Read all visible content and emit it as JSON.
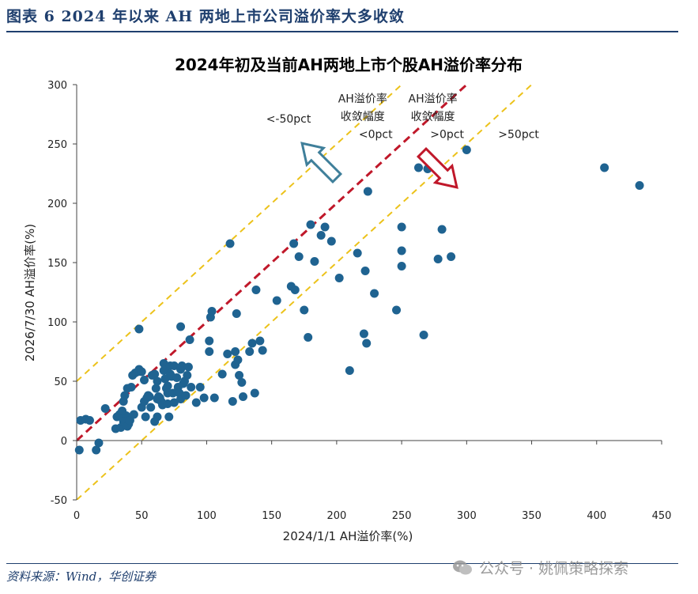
{
  "header": {
    "figure_title": "图表 6   2024 年以来 AH 两地上市公司溢价率大多收敛"
  },
  "footer": {
    "source": "资料来源：Wind，华创证券",
    "watermark": "公众号 · 姚佩策略探索"
  },
  "colors": {
    "header": "#1f3f6e",
    "points": "#1f6391",
    "center_line": "#c0182a",
    "band_lines": "#ecc21a",
    "arrow_up": "#3f7f9a",
    "arrow_down": "#c0182a"
  },
  "chart_data": {
    "type": "scatter",
    "title": "2024年初及当前AH两地上市个股AH溢价率分布",
    "xlabel": "2024/1/1 AH溢价率(%)",
    "ylabel": "2026/7/30 AH溢价率(%)",
    "xlim": [
      0,
      450
    ],
    "ylim": [
      -50,
      300
    ],
    "xticks": [
      0,
      50,
      100,
      150,
      200,
      250,
      300,
      350,
      400,
      450
    ],
    "yticks": [
      -50,
      0,
      50,
      100,
      150,
      200,
      250,
      300
    ],
    "grid": false,
    "reference_lines": [
      {
        "offset": 50,
        "style": "dashed",
        "color": "#ecc21a"
      },
      {
        "offset": 0,
        "style": "dashed",
        "color": "#c0182a"
      },
      {
        "offset": -50,
        "style": "dashed",
        "color": "#ecc21a"
      }
    ],
    "annotations": [
      {
        "text": "<-50pct",
        "x": 163,
        "y": 268
      },
      {
        "text": "AH溢价率",
        "x": 220,
        "y": 285
      },
      {
        "text": "收敛幅度",
        "x": 220,
        "y": 270
      },
      {
        "text": "<0pct",
        "x": 230,
        "y": 255
      },
      {
        "text": "AH溢价率",
        "x": 274,
        "y": 285
      },
      {
        "text": "收敛幅度",
        "x": 274,
        "y": 270
      },
      {
        "text": ">0pct",
        "x": 285,
        "y": 255
      },
      {
        "text": ">50pct",
        "x": 340,
        "y": 255
      }
    ],
    "points": [
      [
        2,
        -8
      ],
      [
        15,
        -8
      ],
      [
        17,
        -2
      ],
      [
        3,
        17
      ],
      [
        7,
        18
      ],
      [
        10,
        17
      ],
      [
        22,
        27
      ],
      [
        30,
        10
      ],
      [
        34,
        11
      ],
      [
        31,
        20
      ],
      [
        33,
        22
      ],
      [
        38,
        21
      ],
      [
        35,
        25
      ],
      [
        36,
        16
      ],
      [
        40,
        14
      ],
      [
        39,
        12
      ],
      [
        41,
        17
      ],
      [
        44,
        22
      ],
      [
        36,
        33
      ],
      [
        37,
        38
      ],
      [
        39,
        44
      ],
      [
        42,
        45
      ],
      [
        43,
        55
      ],
      [
        45,
        57
      ],
      [
        47,
        58
      ],
      [
        48,
        60
      ],
      [
        50,
        58
      ],
      [
        50,
        28
      ],
      [
        52,
        33
      ],
      [
        52,
        51
      ],
      [
        53,
        20
      ],
      [
        54,
        36
      ],
      [
        55,
        38
      ],
      [
        56,
        37
      ],
      [
        57,
        28
      ],
      [
        58,
        55
      ],
      [
        60,
        56
      ],
      [
        61,
        44
      ],
      [
        60,
        16
      ],
      [
        62,
        20
      ],
      [
        62,
        35
      ],
      [
        62,
        50
      ],
      [
        63,
        37
      ],
      [
        64,
        36
      ],
      [
        65,
        33
      ],
      [
        66,
        30
      ],
      [
        67,
        59
      ],
      [
        67,
        65
      ],
      [
        68,
        60
      ],
      [
        68,
        52
      ],
      [
        69,
        44
      ],
      [
        70,
        46
      ],
      [
        70,
        40
      ],
      [
        70,
        31
      ],
      [
        71,
        20
      ],
      [
        72,
        63
      ],
      [
        72,
        56
      ],
      [
        73,
        54
      ],
      [
        74,
        40
      ],
      [
        75,
        32
      ],
      [
        75,
        63
      ],
      [
        77,
        53
      ],
      [
        78,
        45
      ],
      [
        79,
        40
      ],
      [
        80,
        35
      ],
      [
        80,
        60
      ],
      [
        81,
        63
      ],
      [
        82,
        48
      ],
      [
        83,
        50
      ],
      [
        84,
        38
      ],
      [
        85,
        55
      ],
      [
        86,
        62
      ],
      [
        87,
        85
      ],
      [
        88,
        45
      ],
      [
        92,
        32
      ],
      [
        95,
        45
      ],
      [
        98,
        36
      ],
      [
        80,
        96
      ],
      [
        102,
        84
      ],
      [
        102,
        75
      ],
      [
        103,
        104
      ],
      [
        104,
        109
      ],
      [
        106,
        36
      ],
      [
        112,
        56
      ],
      [
        116,
        73
      ],
      [
        118,
        166
      ],
      [
        120,
        33
      ],
      [
        122,
        64
      ],
      [
        122,
        75
      ],
      [
        123,
        107
      ],
      [
        124,
        68
      ],
      [
        125,
        55
      ],
      [
        127,
        49
      ],
      [
        128,
        37
      ],
      [
        133,
        75
      ],
      [
        135,
        82
      ],
      [
        137,
        40
      ],
      [
        138,
        127
      ],
      [
        141,
        84
      ],
      [
        143,
        76
      ],
      [
        154,
        118
      ],
      [
        165,
        130
      ],
      [
        167,
        166
      ],
      [
        168,
        127
      ],
      [
        171,
        155
      ],
      [
        175,
        110
      ],
      [
        178,
        87
      ],
      [
        180,
        182
      ],
      [
        183,
        151
      ],
      [
        188,
        173
      ],
      [
        191,
        180
      ],
      [
        196,
        168
      ],
      [
        202,
        137
      ],
      [
        210,
        59
      ],
      [
        216,
        158
      ],
      [
        221,
        90
      ],
      [
        222,
        143
      ],
      [
        223,
        82
      ],
      [
        224,
        210
      ],
      [
        229,
        124
      ],
      [
        246,
        110
      ],
      [
        250,
        180
      ],
      [
        250,
        160
      ],
      [
        250,
        147
      ],
      [
        263,
        230
      ],
      [
        267,
        89
      ],
      [
        270,
        229
      ],
      [
        278,
        153
      ],
      [
        281,
        178
      ],
      [
        288,
        155
      ],
      [
        300,
        245
      ],
      [
        406,
        230
      ],
      [
        433,
        215
      ],
      [
        48,
        94
      ]
    ]
  }
}
